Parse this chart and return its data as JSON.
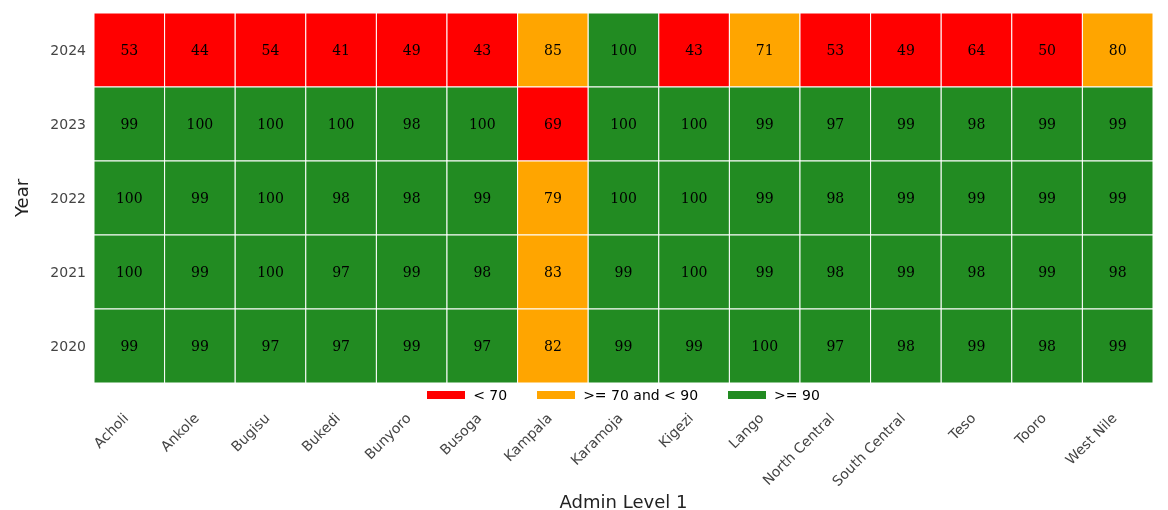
{
  "chart_data": {
    "type": "heatmap",
    "xlabel": "Admin Level 1",
    "ylabel": "Year",
    "categories": [
      "Acholi",
      "Ankole",
      "Bugisu",
      "Bukedi",
      "Bunyoro",
      "Busoga",
      "Kampala",
      "Karamoja",
      "Kigezi",
      "Lango",
      "North Central",
      "South Central",
      "Teso",
      "Tooro",
      "West Nile"
    ],
    "y_categories": [
      "2024",
      "2023",
      "2022",
      "2021",
      "2020"
    ],
    "cells": [
      [
        53,
        44,
        54,
        41,
        49,
        43,
        85,
        100,
        43,
        71,
        53,
        49,
        64,
        50,
        80
      ],
      [
        99,
        100,
        100,
        100,
        98,
        100,
        69,
        100,
        100,
        99,
        97,
        99,
        98,
        99,
        99
      ],
      [
        100,
        99,
        100,
        98,
        98,
        99,
        79,
        100,
        100,
        99,
        98,
        99,
        99,
        99,
        99
      ],
      [
        100,
        99,
        100,
        97,
        99,
        98,
        83,
        99,
        100,
        99,
        98,
        99,
        98,
        99,
        98
      ],
      [
        99,
        99,
        97,
        97,
        99,
        97,
        82,
        99,
        99,
        100,
        97,
        98,
        99,
        98,
        99
      ]
    ],
    "colors": [
      [
        "#ff0000",
        "#ff0000",
        "#ff0000",
        "#ff0000",
        "#ff0000",
        "#ff0000",
        "#ffa500",
        "#228b22",
        "#ff0000",
        "#ffa500",
        "#ff0000",
        "#ff0000",
        "#ff0000",
        "#ff0000",
        "#ffa500"
      ],
      [
        "#228b22",
        "#228b22",
        "#228b22",
        "#228b22",
        "#228b22",
        "#228b22",
        "#ff0000",
        "#228b22",
        "#228b22",
        "#228b22",
        "#228b22",
        "#228b22",
        "#228b22",
        "#228b22",
        "#228b22"
      ],
      [
        "#228b22",
        "#228b22",
        "#228b22",
        "#228b22",
        "#228b22",
        "#228b22",
        "#ffa500",
        "#228b22",
        "#228b22",
        "#228b22",
        "#228b22",
        "#228b22",
        "#228b22",
        "#228b22",
        "#228b22"
      ],
      [
        "#228b22",
        "#228b22",
        "#228b22",
        "#228b22",
        "#228b22",
        "#228b22",
        "#ffa500",
        "#228b22",
        "#228b22",
        "#228b22",
        "#228b22",
        "#228b22",
        "#228b22",
        "#228b22",
        "#228b22"
      ],
      [
        "#228b22",
        "#228b22",
        "#228b22",
        "#228b22",
        "#228b22",
        "#228b22",
        "#ffa500",
        "#228b22",
        "#228b22",
        "#228b22",
        "#228b22",
        "#228b22",
        "#228b22",
        "#228b22",
        "#228b22"
      ]
    ],
    "annotations": [
      "< 70",
      ">= 70 and < 90",
      ">= 90"
    ],
    "data_labels": true
  }
}
